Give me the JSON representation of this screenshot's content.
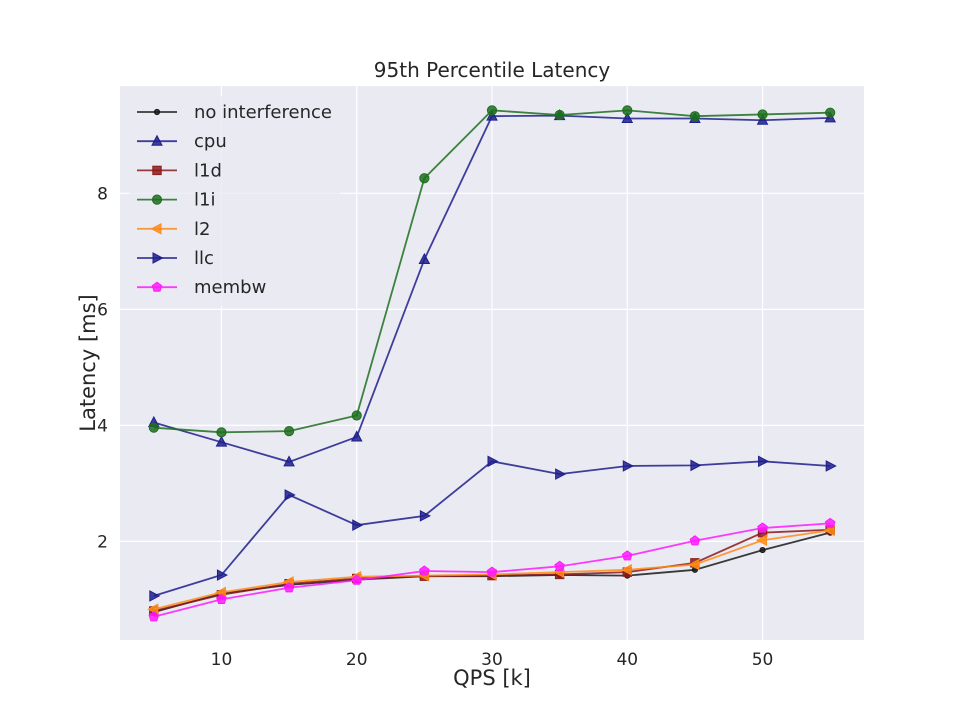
{
  "chart_data": {
    "type": "line",
    "title": "95th Percentile Latency",
    "xlabel": "QPS [k]",
    "ylabel": "Latency [ms]",
    "xlim": [
      2.5,
      57.5
    ],
    "ylim": [
      0.3,
      9.85
    ],
    "xticks": [
      10,
      20,
      30,
      40,
      50
    ],
    "yticks": [
      2,
      4,
      6,
      8
    ],
    "grid": true,
    "legend_position": "upper-left",
    "background": "#EAEAF2",
    "x": [
      5,
      10,
      15,
      20,
      25,
      30,
      35,
      40,
      45,
      50,
      55
    ],
    "series": [
      {
        "name": "no interference",
        "color": "#1a1a1a",
        "marker": "dot",
        "values": [
          0.78,
          1.1,
          1.25,
          1.34,
          1.4,
          1.4,
          1.42,
          1.41,
          1.51,
          1.85,
          2.15
        ]
      },
      {
        "name": "cpu",
        "color": "#1f1f8c",
        "marker": "triangle-up",
        "values": [
          4.05,
          3.71,
          3.37,
          3.8,
          6.86,
          9.33,
          9.34,
          9.29,
          9.29,
          9.26,
          9.3
        ]
      },
      {
        "name": "l1d",
        "color": "#8b1a1a",
        "marker": "square",
        "values": [
          0.8,
          1.08,
          1.27,
          1.36,
          1.4,
          1.41,
          1.43,
          1.47,
          1.63,
          2.15,
          2.2
        ]
      },
      {
        "name": "l1i",
        "color": "#1f6f1f",
        "marker": "circle",
        "values": [
          3.96,
          3.88,
          3.9,
          4.17,
          8.26,
          9.43,
          9.35,
          9.43,
          9.33,
          9.36,
          9.39
        ]
      },
      {
        "name": "l2",
        "color": "#ff8c1a",
        "marker": "triangle-left",
        "values": [
          0.83,
          1.12,
          1.3,
          1.39,
          1.41,
          1.43,
          1.47,
          1.51,
          1.6,
          2.02,
          2.19
        ]
      },
      {
        "name": "llc",
        "color": "#1f1f8c",
        "marker": "triangle-right",
        "values": [
          1.06,
          1.42,
          2.8,
          2.28,
          2.44,
          3.38,
          3.16,
          3.3,
          3.31,
          3.38,
          3.3
        ]
      },
      {
        "name": "membw",
        "color": "#ff1aff",
        "marker": "pentagon",
        "values": [
          0.7,
          1.0,
          1.2,
          1.33,
          1.49,
          1.47,
          1.57,
          1.75,
          2.01,
          2.23,
          2.31
        ]
      }
    ]
  }
}
